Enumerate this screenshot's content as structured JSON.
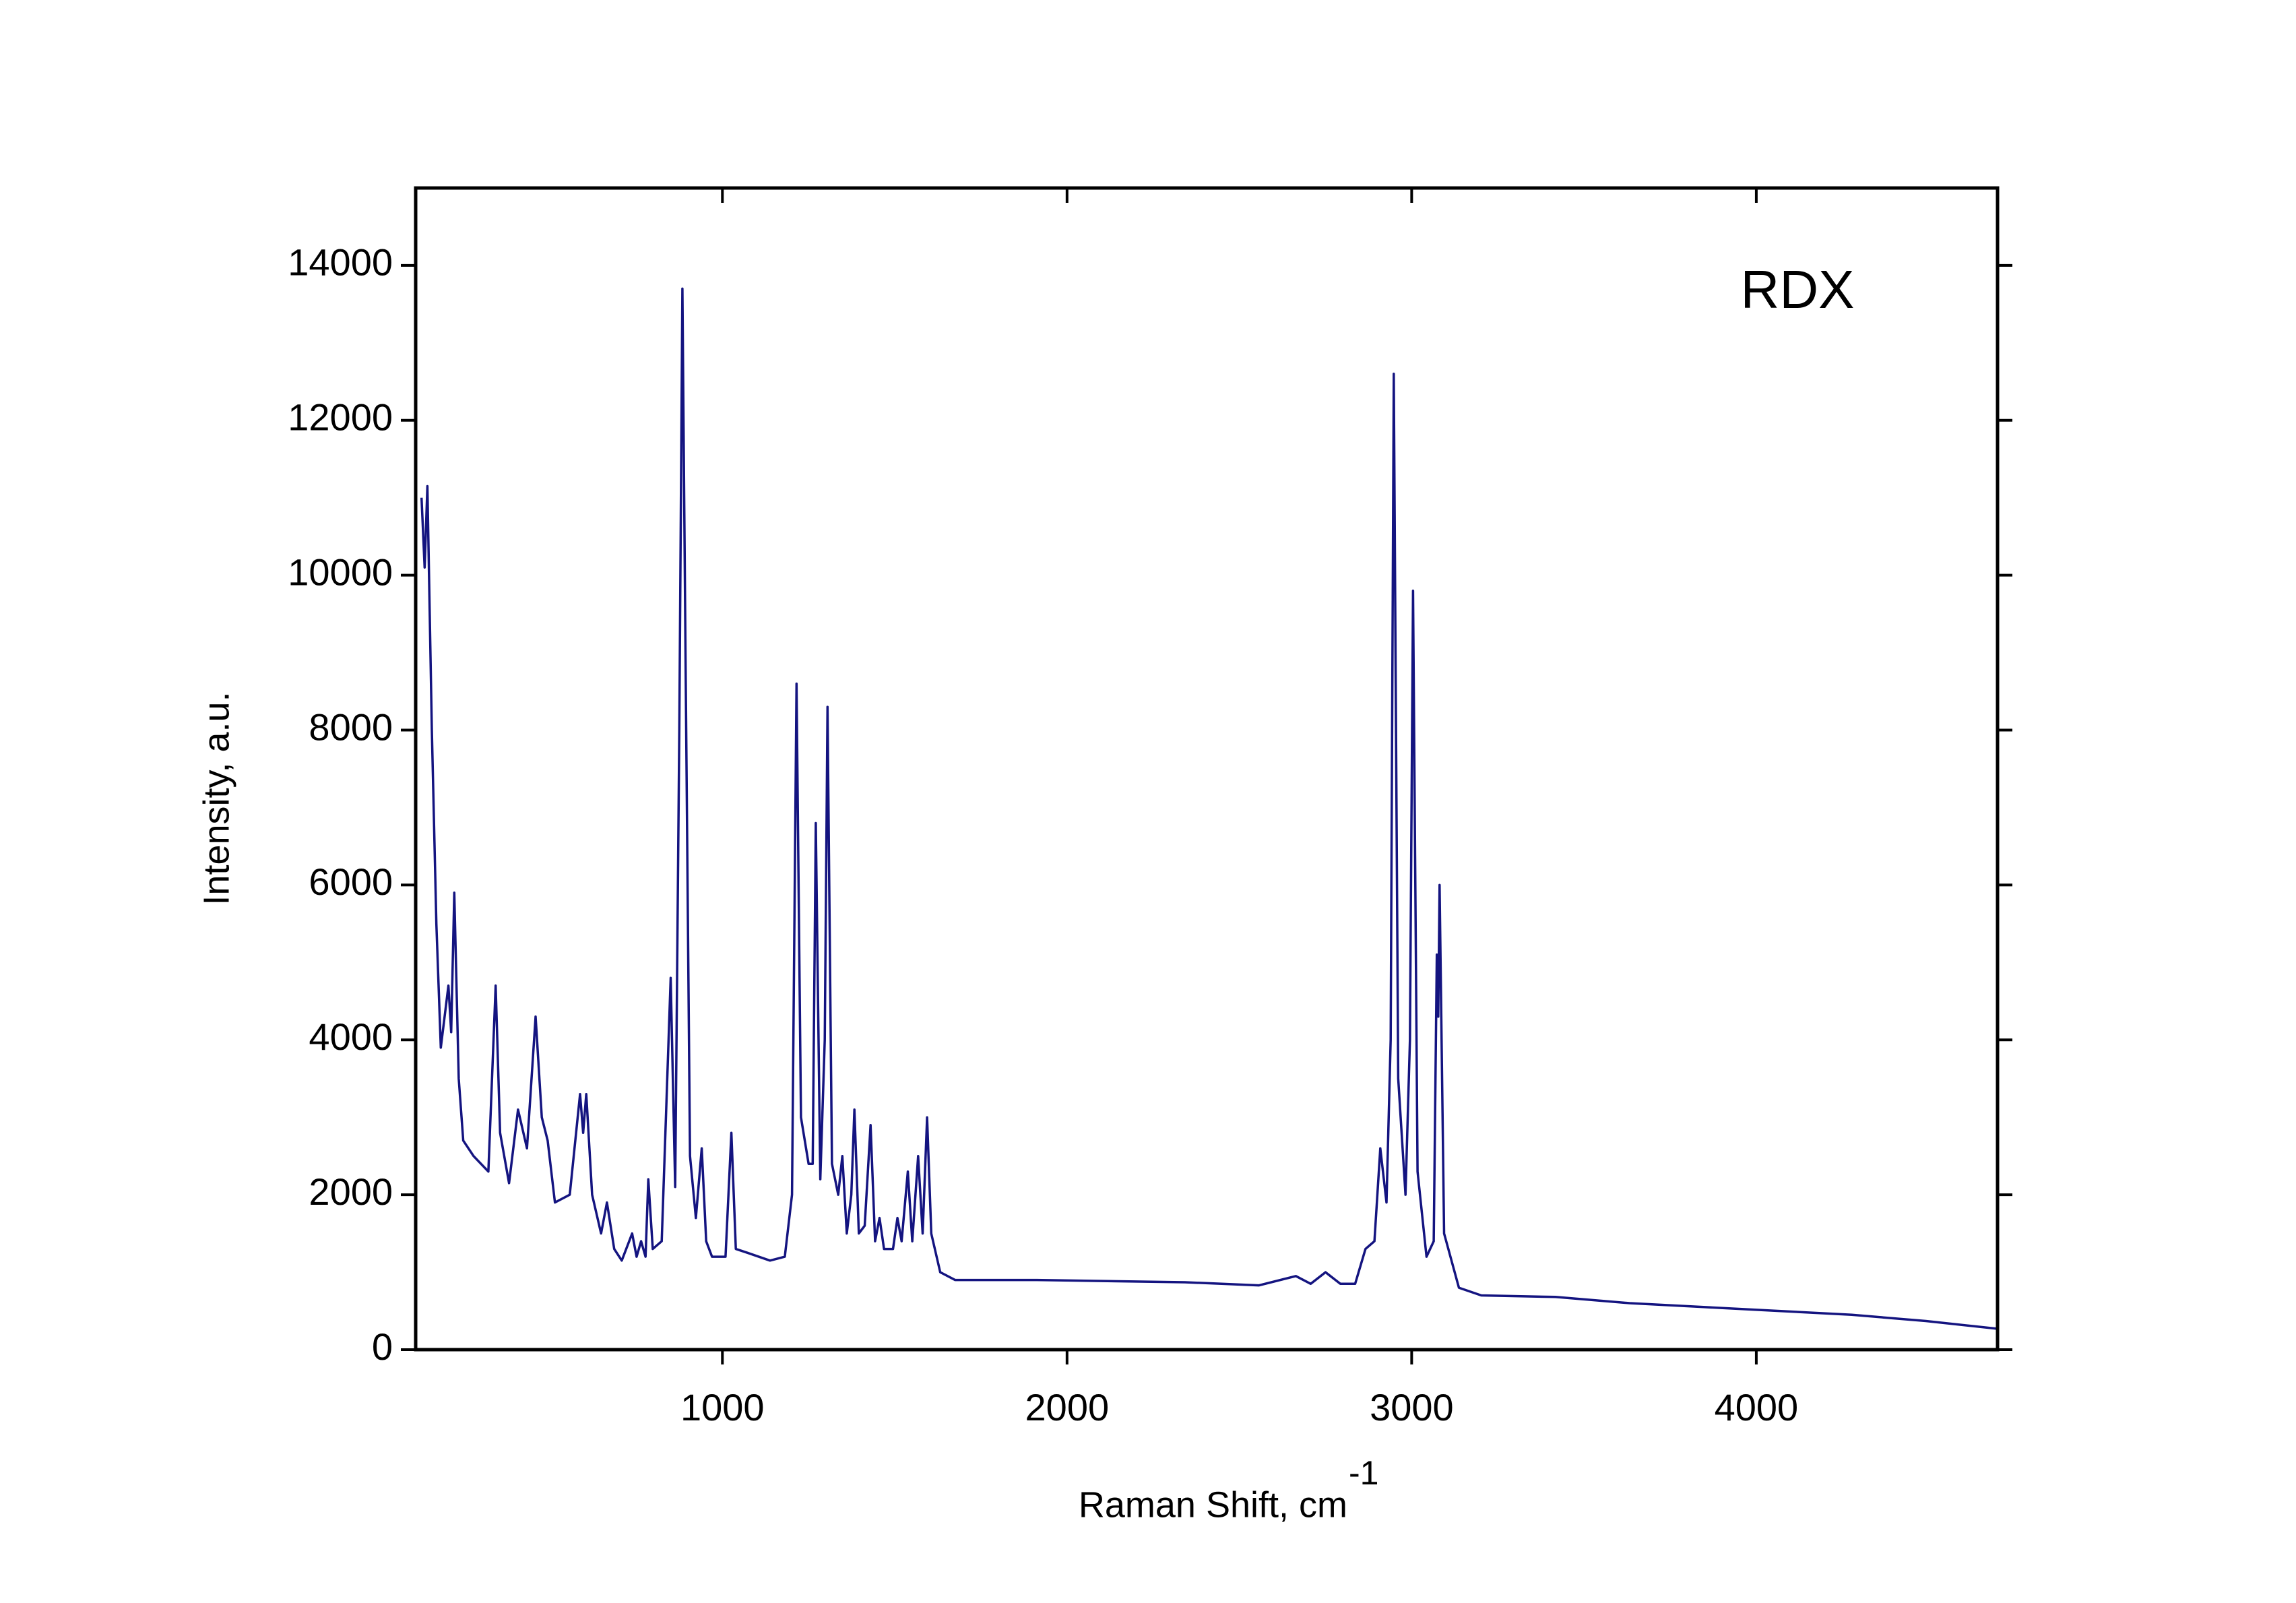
{
  "chart_data": {
    "type": "line",
    "annotation": "RDX",
    "x_label": "Raman Shift, cm",
    "x_label_superscript": "-1",
    "y_label": "Intensity, a.u.",
    "xlim": [
      110,
      4700
    ],
    "ylim": [
      0,
      15000
    ],
    "xticks": [
      1000,
      2000,
      3000,
      4000
    ],
    "yticks": [
      0,
      2000,
      4000,
      6000,
      8000,
      10000,
      12000,
      14000
    ],
    "x": [
      127,
      136,
      144,
      157,
      170,
      183,
      205,
      213,
      222,
      235,
      248,
      278,
      321,
      342,
      355,
      381,
      407,
      433,
      458,
      476,
      493,
      514,
      557,
      587,
      596,
      605,
      622,
      648,
      665,
      686,
      708,
      738,
      751,
      764,
      777,
      785,
      798,
      824,
      850,
      863,
      875,
      884,
      893,
      906,
      923,
      940,
      953,
      970,
      1009,
      1026,
      1039,
      1073,
      1138,
      1181,
      1202,
      1215,
      1228,
      1250,
      1262,
      1271,
      1284,
      1297,
      1305,
      1318,
      1336,
      1348,
      1361,
      1374,
      1383,
      1396,
      1413,
      1430,
      1443,
      1456,
      1469,
      1495,
      1508,
      1520,
      1538,
      1551,
      1568,
      1581,
      1594,
      1606,
      1632,
      1675,
      1912,
      2342,
      2557,
      2664,
      2707,
      2750,
      2793,
      2836,
      2866,
      2892,
      2909,
      2927,
      2939,
      2948,
      2961,
      2982,
      2995,
      3004,
      3017,
      3043,
      3064,
      3073,
      3077,
      3081,
      3094,
      3137,
      3202,
      3417,
      3632,
      3847,
      4062,
      4277,
      4492,
      4700
    ],
    "series": [
      {
        "name": "RDX",
        "color": "#141480",
        "values": [
          11000,
          10100,
          11150,
          8000,
          5500,
          3900,
          4700,
          4100,
          5900,
          3500,
          2700,
          2500,
          2300,
          4700,
          2800,
          2150,
          3100,
          2600,
          4300,
          3000,
          2700,
          1900,
          2000,
          3300,
          2800,
          3300,
          2000,
          1500,
          1900,
          1300,
          1150,
          1500,
          1200,
          1400,
          1200,
          2200,
          1300,
          1400,
          4800,
          2100,
          8000,
          13700,
          9000,
          2500,
          1700,
          2600,
          1400,
          1200,
          1200,
          2800,
          1300,
          1250,
          1150,
          1200,
          2000,
          8600,
          3000,
          2400,
          2400,
          6800,
          2200,
          4000,
          8300,
          2400,
          2000,
          2500,
          1500,
          2000,
          3100,
          1500,
          1600,
          2900,
          1400,
          1700,
          1300,
          1300,
          1700,
          1400,
          2300,
          1400,
          2500,
          1500,
          3000,
          1500,
          1000,
          900,
          900,
          870,
          830,
          950,
          850,
          1000,
          850,
          850,
          1300,
          1400,
          2600,
          1900,
          4000,
          12600,
          3500,
          2000,
          4000,
          9800,
          2300,
          1200,
          1400,
          5100,
          4300,
          6000,
          1500,
          800,
          700,
          680,
          600,
          550,
          500,
          450,
          370,
          270
        ]
      }
    ]
  }
}
